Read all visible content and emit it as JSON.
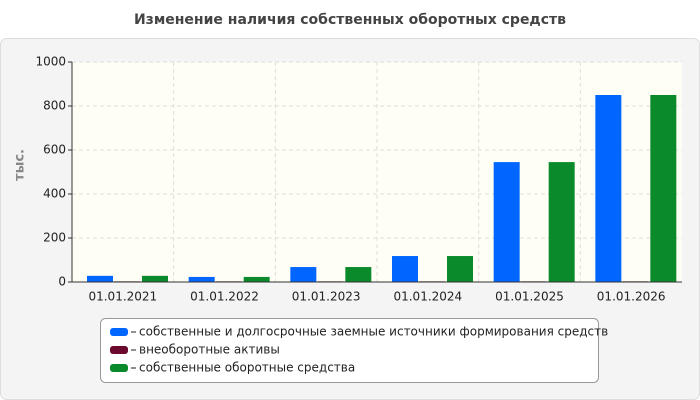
{
  "chart_data": {
    "type": "bar",
    "title": "Изменение наличия собственных оборотных средств",
    "y_label": "тыс.",
    "categories": [
      "01.01.2021",
      "01.01.2022",
      "01.01.2023",
      "01.01.2024",
      "01.01.2025",
      "01.01.2026"
    ],
    "series": [
      {
        "name": "собственные и долгосрочные заемные источники формирования средств",
        "color": "#0066ff",
        "values": [
          28,
          23,
          68,
          118,
          545,
          850
        ]
      },
      {
        "name": "внеоборотные активы",
        "color": "#6b0a2e",
        "values": [
          3,
          3,
          3,
          3,
          3,
          3
        ]
      },
      {
        "name": "собственные оборотные средства",
        "color": "#0a8a2a",
        "values": [
          28,
          23,
          68,
          118,
          545,
          850
        ]
      }
    ],
    "ylim": [
      0,
      1000
    ],
    "yticks": [
      0,
      200,
      400,
      600,
      800,
      1000
    ],
    "grid": true
  }
}
